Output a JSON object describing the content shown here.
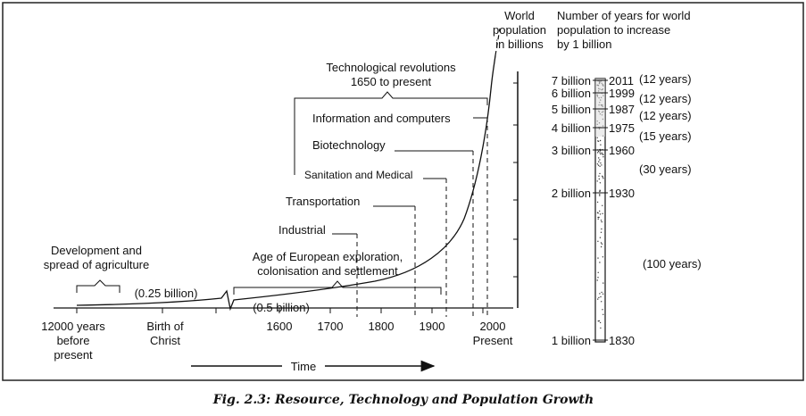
{
  "caption": "Fig. 2.3: Resource, Technology and Population Growth",
  "header": {
    "world_pop": [
      "World",
      "population",
      "in billions"
    ],
    "years_title": [
      "Number of years for world",
      "population to increase",
      "by 1 billion"
    ]
  },
  "x_axis": {
    "ticks": [
      "1600",
      "1700",
      "1800",
      "1900",
      "2000"
    ],
    "left_label": [
      "12000 years",
      "before",
      "present"
    ],
    "christ_label": [
      "Birth of",
      "Christ"
    ],
    "present_label": "Present",
    "time_label": "Time"
  },
  "eras": {
    "agriculture": [
      "Development and",
      "spread of agriculture"
    ],
    "agri_pop": "(0.25 billion)",
    "exploration": [
      "Age of European exploration,",
      "colonisation and settlement"
    ],
    "explore_pop": "(0.5 billion)",
    "technological": [
      "Technological revolutions",
      "1650 to present"
    ]
  },
  "milestones": [
    "Information and computers",
    "Biotechnology",
    "Sanitation and Medical",
    "Transportation",
    "Industrial"
  ],
  "scale": {
    "billions": [
      "7 billion",
      "6 billion",
      "5 billion",
      "4 billion",
      "3 billion",
      "2 billion",
      "1 billion"
    ],
    "years": [
      "2011",
      "1999",
      "1987",
      "1975",
      "1960",
      "1930",
      "1830"
    ],
    "intervals": [
      "(12 years)",
      "(12 years)",
      "(12 years)",
      "(15 years)",
      "(30 years)",
      "(100 years)"
    ]
  }
}
